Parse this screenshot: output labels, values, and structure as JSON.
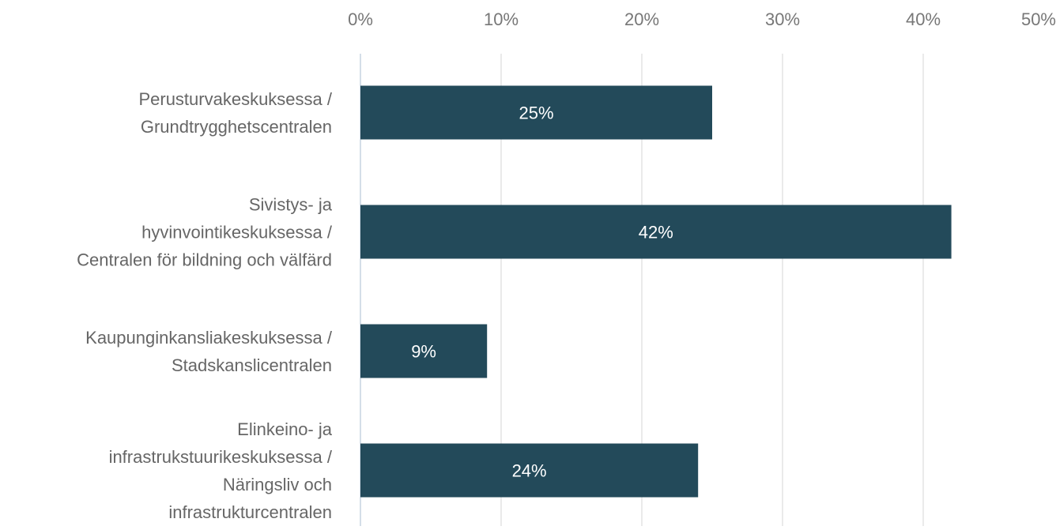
{
  "chart_data": {
    "type": "hbar",
    "categories": [
      "Perusturvakeskuksessa /\nGrundtrygghetscentralen",
      "Sivistys- ja\nhyvinvointikeskuksessa /\nCentralen för bildning och välfärd",
      "Kaupunginkansliakeskuksessa /\nStadskanslicentralen",
      "Elinkeino- ja\ninfrastrukstuurikeskuksessa /\nNäringsliv och\ninfrastrukturcentralen"
    ],
    "values": [
      25,
      42,
      9,
      24
    ],
    "value_labels": [
      "25%",
      "42%",
      "9%",
      "24%"
    ],
    "color": "#234a5a",
    "xlim": [
      0,
      50
    ],
    "xticks": [
      {
        "value": 0,
        "label": "0%"
      },
      {
        "value": 10,
        "label": "10%"
      },
      {
        "value": 20,
        "label": "20%"
      },
      {
        "value": 30,
        "label": "30%"
      },
      {
        "value": 40,
        "label": "40%"
      },
      {
        "value": 50,
        "label": "50%"
      }
    ],
    "grid": true
  }
}
